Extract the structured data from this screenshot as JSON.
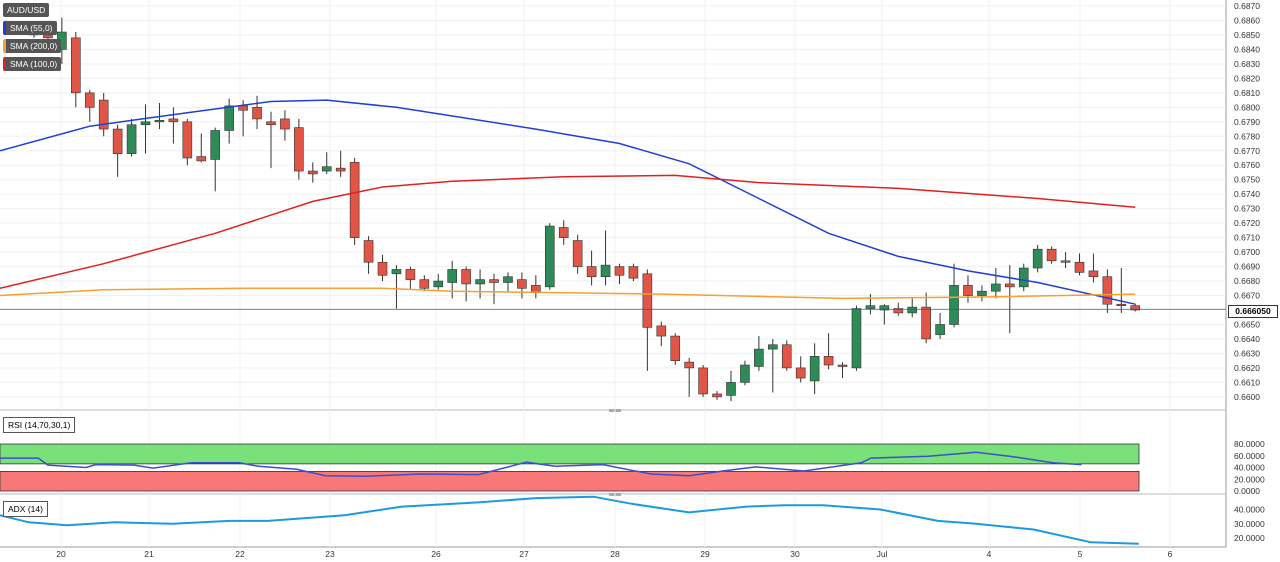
{
  "chart_data": {
    "type": "candlestick",
    "symbol": "AUD/USD",
    "overlays": [
      {
        "name": "SMA (55,0)",
        "color": "#1f3fd6"
      },
      {
        "name": "SMA (200,0)",
        "color": "#f5a030"
      },
      {
        "name": "SMA (100,0)",
        "color": "#e02020"
      }
    ],
    "x_tick_labels": [
      "20",
      "21",
      "22",
      "23",
      "26",
      "27",
      "28",
      "29",
      "30",
      "Jul",
      "4",
      "5",
      "6"
    ],
    "price_axis": {
      "ylim": [
        0.6593,
        0.6872
      ],
      "ticks": [
        "0.6870",
        "0.6860",
        "0.6850",
        "0.6840",
        "0.6830",
        "0.6820",
        "0.6810",
        "0.6800",
        "0.6790",
        "0.6780",
        "0.6770",
        "0.6760",
        "0.6750",
        "0.6740",
        "0.6730",
        "0.6720",
        "0.6710",
        "0.6700",
        "0.6690",
        "0.6680",
        "0.6670",
        "0.6650",
        "0.6640",
        "0.6630",
        "0.6620",
        "0.6610",
        "0.6600"
      ],
      "current_price": "0.666050",
      "current_price_value": 0.66605
    },
    "candles": [
      {
        "o": 0.685,
        "h": 0.6856,
        "l": 0.6848,
        "c": 0.6852
      },
      {
        "o": 0.685,
        "h": 0.6858,
        "l": 0.6845,
        "c": 0.6848
      },
      {
        "o": 0.684,
        "h": 0.6862,
        "l": 0.683,
        "c": 0.6852
      },
      {
        "o": 0.6848,
        "h": 0.6852,
        "l": 0.68,
        "c": 0.681
      },
      {
        "o": 0.681,
        "h": 0.6812,
        "l": 0.679,
        "c": 0.68
      },
      {
        "o": 0.6805,
        "h": 0.681,
        "l": 0.678,
        "c": 0.6785
      },
      {
        "o": 0.6785,
        "h": 0.6788,
        "l": 0.6752,
        "c": 0.6768
      },
      {
        "o": 0.6768,
        "h": 0.6792,
        "l": 0.6766,
        "c": 0.6788
      },
      {
        "o": 0.6788,
        "h": 0.6802,
        "l": 0.6768,
        "c": 0.679
      },
      {
        "o": 0.679,
        "h": 0.6803,
        "l": 0.6785,
        "c": 0.6791
      },
      {
        "o": 0.6792,
        "h": 0.68,
        "l": 0.6775,
        "c": 0.679
      },
      {
        "o": 0.679,
        "h": 0.6792,
        "l": 0.676,
        "c": 0.6765
      },
      {
        "o": 0.6766,
        "h": 0.6782,
        "l": 0.6762,
        "c": 0.6763
      },
      {
        "o": 0.6764,
        "h": 0.6786,
        "l": 0.6742,
        "c": 0.6784
      },
      {
        "o": 0.6784,
        "h": 0.6806,
        "l": 0.6775,
        "c": 0.6801
      },
      {
        "o": 0.6801,
        "h": 0.6805,
        "l": 0.678,
        "c": 0.6798
      },
      {
        "o": 0.68,
        "h": 0.6808,
        "l": 0.6785,
        "c": 0.6792
      },
      {
        "o": 0.679,
        "h": 0.6797,
        "l": 0.6758,
        "c": 0.6788
      },
      {
        "o": 0.6792,
        "h": 0.6798,
        "l": 0.6777,
        "c": 0.6785
      },
      {
        "o": 0.6786,
        "h": 0.6792,
        "l": 0.675,
        "c": 0.6756
      },
      {
        "o": 0.6756,
        "h": 0.6762,
        "l": 0.6748,
        "c": 0.6754
      },
      {
        "o": 0.6756,
        "h": 0.6769,
        "l": 0.6754,
        "c": 0.6759
      },
      {
        "o": 0.6758,
        "h": 0.677,
        "l": 0.6752,
        "c": 0.6756
      },
      {
        "o": 0.6762,
        "h": 0.6765,
        "l": 0.6705,
        "c": 0.671
      },
      {
        "o": 0.6708,
        "h": 0.6711,
        "l": 0.6685,
        "c": 0.6693
      },
      {
        "o": 0.6693,
        "h": 0.6698,
        "l": 0.668,
        "c": 0.6684
      },
      {
        "o": 0.6685,
        "h": 0.6691,
        "l": 0.6661,
        "c": 0.6688
      },
      {
        "o": 0.6688,
        "h": 0.669,
        "l": 0.6674,
        "c": 0.6681
      },
      {
        "o": 0.6681,
        "h": 0.6684,
        "l": 0.6673,
        "c": 0.6675
      },
      {
        "o": 0.6676,
        "h": 0.6685,
        "l": 0.6674,
        "c": 0.668
      },
      {
        "o": 0.6679,
        "h": 0.6694,
        "l": 0.6668,
        "c": 0.6688
      },
      {
        "o": 0.6688,
        "h": 0.669,
        "l": 0.6666,
        "c": 0.6678
      },
      {
        "o": 0.6678,
        "h": 0.6688,
        "l": 0.6668,
        "c": 0.6681
      },
      {
        "o": 0.6681,
        "h": 0.6685,
        "l": 0.6664,
        "c": 0.6679
      },
      {
        "o": 0.6679,
        "h": 0.6686,
        "l": 0.6672,
        "c": 0.6683
      },
      {
        "o": 0.6681,
        "h": 0.6686,
        "l": 0.6668,
        "c": 0.6675
      },
      {
        "o": 0.6677,
        "h": 0.6684,
        "l": 0.6668,
        "c": 0.6672
      },
      {
        "o": 0.6676,
        "h": 0.672,
        "l": 0.6674,
        "c": 0.6718
      },
      {
        "o": 0.6717,
        "h": 0.6722,
        "l": 0.6705,
        "c": 0.671
      },
      {
        "o": 0.6708,
        "h": 0.6712,
        "l": 0.6685,
        "c": 0.669
      },
      {
        "o": 0.669,
        "h": 0.6701,
        "l": 0.6677,
        "c": 0.6683
      },
      {
        "o": 0.6683,
        "h": 0.6715,
        "l": 0.6677,
        "c": 0.6691
      },
      {
        "o": 0.669,
        "h": 0.6692,
        "l": 0.6678,
        "c": 0.6684
      },
      {
        "o": 0.669,
        "h": 0.6692,
        "l": 0.668,
        "c": 0.6682
      },
      {
        "o": 0.6685,
        "h": 0.6688,
        "l": 0.6618,
        "c": 0.6648
      },
      {
        "o": 0.6649,
        "h": 0.6652,
        "l": 0.6635,
        "c": 0.6642
      },
      {
        "o": 0.6642,
        "h": 0.6644,
        "l": 0.6622,
        "c": 0.6625
      },
      {
        "o": 0.6624,
        "h": 0.6627,
        "l": 0.66,
        "c": 0.662
      },
      {
        "o": 0.662,
        "h": 0.6622,
        "l": 0.66,
        "c": 0.6602
      },
      {
        "o": 0.6602,
        "h": 0.6604,
        "l": 0.6598,
        "c": 0.66
      },
      {
        "o": 0.6601,
        "h": 0.6618,
        "l": 0.6597,
        "c": 0.661
      },
      {
        "o": 0.661,
        "h": 0.6625,
        "l": 0.6608,
        "c": 0.6622
      },
      {
        "o": 0.6621,
        "h": 0.6642,
        "l": 0.6618,
        "c": 0.6633
      },
      {
        "o": 0.6633,
        "h": 0.664,
        "l": 0.6603,
        "c": 0.6636
      },
      {
        "o": 0.6636,
        "h": 0.6639,
        "l": 0.6618,
        "c": 0.662
      },
      {
        "o": 0.662,
        "h": 0.6628,
        "l": 0.661,
        "c": 0.6613
      },
      {
        "o": 0.6611,
        "h": 0.6637,
        "l": 0.6602,
        "c": 0.6628
      },
      {
        "o": 0.6628,
        "h": 0.6644,
        "l": 0.6619,
        "c": 0.6622
      },
      {
        "o": 0.6622,
        "h": 0.6624,
        "l": 0.6613,
        "c": 0.6621
      },
      {
        "o": 0.662,
        "h": 0.6663,
        "l": 0.6618,
        "c": 0.6661
      },
      {
        "o": 0.6661,
        "h": 0.6671,
        "l": 0.6657,
        "c": 0.6663
      },
      {
        "o": 0.666,
        "h": 0.6664,
        "l": 0.665,
        "c": 0.6663
      },
      {
        "o": 0.6661,
        "h": 0.6665,
        "l": 0.6656,
        "c": 0.6658
      },
      {
        "o": 0.6658,
        "h": 0.6668,
        "l": 0.6655,
        "c": 0.6662
      },
      {
        "o": 0.6662,
        "h": 0.6672,
        "l": 0.6637,
        "c": 0.664
      },
      {
        "o": 0.6643,
        "h": 0.6658,
        "l": 0.664,
        "c": 0.665
      },
      {
        "o": 0.665,
        "h": 0.6692,
        "l": 0.6648,
        "c": 0.6677
      },
      {
        "o": 0.6677,
        "h": 0.6684,
        "l": 0.6665,
        "c": 0.667
      },
      {
        "o": 0.667,
        "h": 0.6677,
        "l": 0.6666,
        "c": 0.6673
      },
      {
        "o": 0.6673,
        "h": 0.6689,
        "l": 0.6668,
        "c": 0.6678
      },
      {
        "o": 0.6678,
        "h": 0.6691,
        "l": 0.6644,
        "c": 0.6676
      },
      {
        "o": 0.6676,
        "h": 0.6692,
        "l": 0.6673,
        "c": 0.6689
      },
      {
        "o": 0.6689,
        "h": 0.6705,
        "l": 0.6686,
        "c": 0.6702
      },
      {
        "o": 0.6702,
        "h": 0.6704,
        "l": 0.6692,
        "c": 0.6694
      },
      {
        "o": 0.6694,
        "h": 0.67,
        "l": 0.6689,
        "c": 0.6693
      },
      {
        "o": 0.6693,
        "h": 0.6699,
        "l": 0.6684,
        "c": 0.6686
      },
      {
        "o": 0.6687,
        "h": 0.6699,
        "l": 0.6679,
        "c": 0.6683
      },
      {
        "o": 0.6683,
        "h": 0.6688,
        "l": 0.6658,
        "c": 0.6664
      },
      {
        "o": 0.6664,
        "h": 0.6689,
        "l": 0.6658,
        "c": 0.6663
      },
      {
        "o": 0.6663,
        "h": 0.6664,
        "l": 0.6659,
        "c": 0.666
      }
    ],
    "sma55": [
      [
        0,
        0.677
      ],
      [
        4,
        0.6787
      ],
      [
        10,
        0.6795
      ],
      [
        17,
        0.6804
      ],
      [
        21,
        0.6805
      ],
      [
        26,
        0.68
      ],
      [
        36,
        0.6785
      ],
      [
        42,
        0.6775
      ],
      [
        47,
        0.6761
      ],
      [
        52,
        0.6737
      ],
      [
        57,
        0.6713
      ],
      [
        62,
        0.6697
      ],
      [
        67,
        0.6687
      ],
      [
        72,
        0.6679
      ],
      [
        79,
        0.6664
      ]
    ],
    "sma100": [
      [
        0,
        0.6675
      ],
      [
        5,
        0.6692
      ],
      [
        13,
        0.6713
      ],
      [
        20,
        0.6735
      ],
      [
        25,
        0.6745
      ],
      [
        30,
        0.6749
      ],
      [
        38,
        0.6752
      ],
      [
        46,
        0.6753
      ],
      [
        52,
        0.6748
      ],
      [
        62,
        0.6744
      ],
      [
        72,
        0.6737
      ],
      [
        79,
        0.6731
      ]
    ],
    "sma200": [
      [
        0,
        0.667
      ],
      [
        5,
        0.6674
      ],
      [
        15,
        0.6675
      ],
      [
        25,
        0.6675
      ],
      [
        30,
        0.6673
      ],
      [
        45,
        0.6671
      ],
      [
        58,
        0.6668
      ],
      [
        68,
        0.6669
      ],
      [
        79,
        0.6671
      ]
    ],
    "rsi": {
      "label": "RSI (14,70,30,1)",
      "ticks": [
        "80.0000",
        "60.0000",
        "40.0000",
        "20.0000",
        "0.0000"
      ],
      "overbought": 70,
      "oversold": 30,
      "values": [
        [
          0,
          56
        ],
        [
          4,
          56
        ],
        [
          5,
          44
        ],
        [
          9,
          40
        ],
        [
          10,
          45
        ],
        [
          14,
          44
        ],
        [
          16,
          39
        ],
        [
          20,
          48
        ],
        [
          25,
          48
        ],
        [
          27,
          42
        ],
        [
          31,
          37
        ],
        [
          34,
          26
        ],
        [
          38,
          25
        ],
        [
          44,
          29
        ],
        [
          50,
          28
        ],
        [
          55,
          49
        ],
        [
          58,
          42
        ],
        [
          63,
          45
        ],
        [
          68,
          29
        ],
        [
          72,
          26
        ],
        [
          76,
          35
        ],
        [
          79,
          41
        ],
        [
          84,
          34
        ],
        [
          90,
          48
        ],
        [
          91,
          56
        ],
        [
          97,
          59
        ],
        [
          102,
          66
        ],
        [
          106,
          58
        ],
        [
          110,
          48
        ],
        [
          113,
          45
        ]
      ]
    },
    "adx": {
      "label": "ADX (14)",
      "ticks": [
        "40.0000",
        "30.0000",
        "20.0000"
      ],
      "values": [
        [
          0,
          36
        ],
        [
          3,
          31
        ],
        [
          7,
          29
        ],
        [
          12,
          31
        ],
        [
          18,
          30
        ],
        [
          24,
          32
        ],
        [
          28,
          32
        ],
        [
          36,
          36
        ],
        [
          42,
          42
        ],
        [
          50,
          45
        ],
        [
          56,
          48
        ],
        [
          62,
          49
        ],
        [
          66,
          44
        ],
        [
          72,
          38
        ],
        [
          78,
          42
        ],
        [
          82,
          43
        ],
        [
          86,
          43
        ],
        [
          92,
          40
        ],
        [
          98,
          32
        ],
        [
          102,
          30
        ],
        [
          108,
          26
        ],
        [
          114,
          17
        ],
        [
          119,
          16
        ]
      ]
    }
  }
}
